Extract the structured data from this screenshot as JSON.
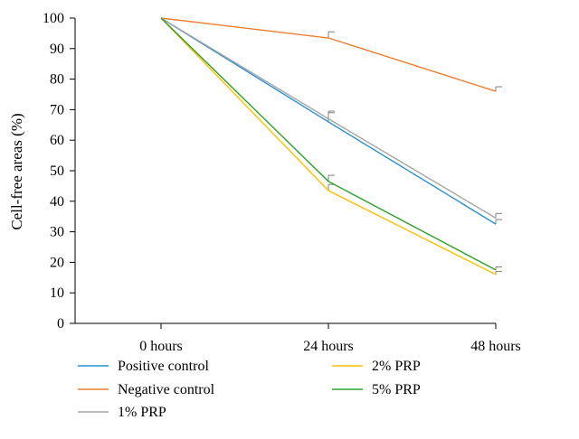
{
  "chart_data": {
    "type": "line",
    "title": "",
    "xlabel": "",
    "ylabel": "Cell-free areas (%)",
    "categories": [
      "0 hours",
      "24 hours",
      "48 hours"
    ],
    "ylim": [
      0,
      100
    ],
    "yticks": [
      "0",
      "10",
      "20",
      "30",
      "40",
      "50",
      "60",
      "70",
      "80",
      "90",
      "100"
    ],
    "grid": false,
    "legend_position": "bottom",
    "series": [
      {
        "name": "Positive control",
        "color": "#2a90d0",
        "values": [
          100,
          66,
          32.5
        ],
        "errors": [
          0,
          3,
          1.5
        ]
      },
      {
        "name": "Negative control",
        "color": "#ed7d31",
        "values": [
          100,
          93.5,
          76
        ],
        "errors": [
          0,
          2,
          1.5
        ]
      },
      {
        "name": "1% PRP",
        "color": "#a5a5a5",
        "values": [
          100,
          67,
          34.5
        ],
        "errors": [
          0,
          2.5,
          1.5
        ]
      },
      {
        "name": "2% PRP",
        "color": "#ffc000",
        "values": [
          100,
          43.5,
          16
        ],
        "errors": [
          0,
          2,
          1
        ]
      },
      {
        "name": "5% PRP",
        "color": "#2ca02c",
        "values": [
          100,
          46.5,
          17.5
        ],
        "errors": [
          0,
          2,
          1
        ]
      }
    ]
  }
}
